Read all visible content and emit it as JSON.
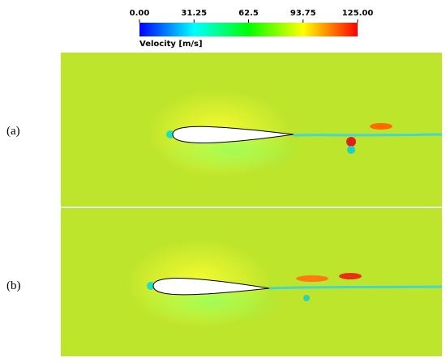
{
  "colorbar": {
    "title": "Velocity [m/s]",
    "ticks": [
      {
        "value": 0,
        "label": "0.00"
      },
      31.25,
      62.5,
      93.75,
      {
        "value": 125,
        "label": "125.00"
      }
    ]
  },
  "panels": [
    {
      "label": "(a)"
    },
    {
      "label": "(b)"
    }
  ]
}
